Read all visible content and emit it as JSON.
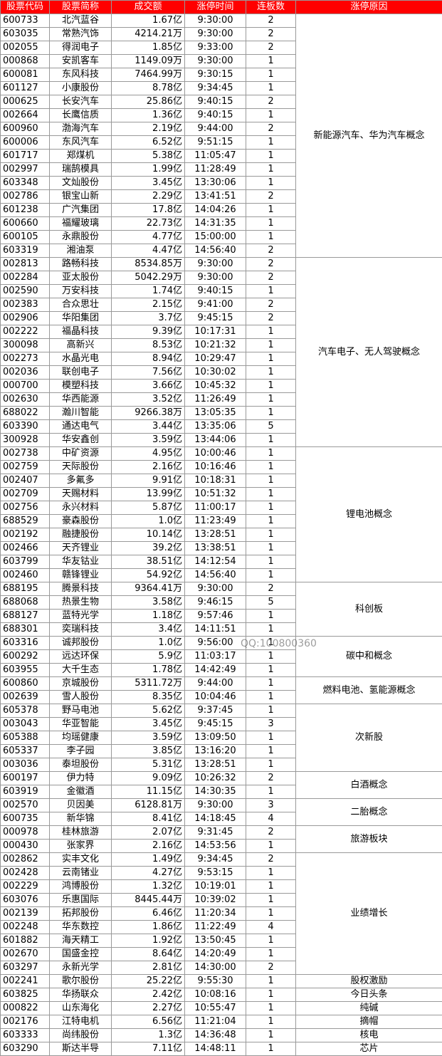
{
  "header": [
    "股票代码",
    "股票简称",
    "成交额",
    "涨停时间",
    "连板数",
    "涨停原因"
  ],
  "groups": [
    {
      "reason": "新能源汽车、华为汽车概念",
      "rows": [
        [
          "600733",
          "北汽蓝谷",
          "1.67亿",
          "9:30:00",
          "2"
        ],
        [
          "603035",
          "常熟汽饰",
          "4214.21万",
          "9:30:00",
          "2"
        ],
        [
          "002055",
          "得润电子",
          "1.85亿",
          "9:33:00",
          "2"
        ],
        [
          "000868",
          "安凯客车",
          "1149.09万",
          "9:30:00",
          "1"
        ],
        [
          "600081",
          "东风科技",
          "7464.99万",
          "9:30:15",
          "1"
        ],
        [
          "601127",
          "小康股份",
          "8.78亿",
          "9:34:45",
          "1"
        ],
        [
          "000625",
          "长安汽车",
          "25.86亿",
          "9:40:15",
          "2"
        ],
        [
          "002664",
          "长鹰信质",
          "1.36亿",
          "9:40:15",
          "1"
        ],
        [
          "600960",
          "渤海汽车",
          "2.19亿",
          "9:44:00",
          "2"
        ],
        [
          "600006",
          "东风汽车",
          "6.52亿",
          "9:51:15",
          "1"
        ],
        [
          "601717",
          "郑煤机",
          "5.38亿",
          "11:05:47",
          "1"
        ],
        [
          "002997",
          "瑞鹄模具",
          "1.99亿",
          "11:28:49",
          "1"
        ],
        [
          "603348",
          "文灿股份",
          "3.45亿",
          "13:30:06",
          "1"
        ],
        [
          "002786",
          "银宝山新",
          "2.29亿",
          "13:41:51",
          "2"
        ],
        [
          "601238",
          "广汽集团",
          "17.8亿",
          "14:04:26",
          "1"
        ],
        [
          "600660",
          "福耀玻璃",
          "22.73亿",
          "14:31:35",
          "1"
        ],
        [
          "600105",
          "永鼎股份",
          "4.77亿",
          "15:00:00",
          "1"
        ],
        [
          "603319",
          "湘油泵",
          "4.47亿",
          "14:56:40",
          "2"
        ]
      ]
    },
    {
      "reason": "汽车电子、无人驾驶概念",
      "rows": [
        [
          "002813",
          "路畅科技",
          "8534.85万",
          "9:30:00",
          "2"
        ],
        [
          "002284",
          "亚太股份",
          "5042.29万",
          "9:30:00",
          "2"
        ],
        [
          "002590",
          "万安科技",
          "1.74亿",
          "9:40:15",
          "1"
        ],
        [
          "002383",
          "合众思壮",
          "2.15亿",
          "9:41:00",
          "2"
        ],
        [
          "002906",
          "华阳集团",
          "3.7亿",
          "9:45:15",
          "2"
        ],
        [
          "002222",
          "福晶科技",
          "9.39亿",
          "10:17:31",
          "1"
        ],
        [
          "300098",
          "高新兴",
          "8.53亿",
          "10:21:32",
          "1"
        ],
        [
          "002273",
          "水晶光电",
          "8.94亿",
          "10:29:47",
          "1"
        ],
        [
          "002036",
          "联创电子",
          "7.56亿",
          "10:30:02",
          "1"
        ],
        [
          "000700",
          "模塑科技",
          "3.66亿",
          "10:45:32",
          "1"
        ],
        [
          "002630",
          "华西能源",
          "3.52亿",
          "11:26:49",
          "1"
        ],
        [
          "688022",
          "瀚川智能",
          "9266.38万",
          "13:05:35",
          "1"
        ],
        [
          "603390",
          "通达电气",
          "3.44亿",
          "13:35:06",
          "5"
        ],
        [
          "300928",
          "华安鑫创",
          "3.59亿",
          "13:44:06",
          "1"
        ]
      ]
    },
    {
      "reason": "锂电池概念",
      "rows": [
        [
          "002738",
          "中矿资源",
          "4.95亿",
          "10:00:46",
          "1"
        ],
        [
          "002759",
          "天际股份",
          "2.16亿",
          "10:16:46",
          "1"
        ],
        [
          "002407",
          "多氟多",
          "9.91亿",
          "10:18:31",
          "1"
        ],
        [
          "002709",
          "天赐材料",
          "13.99亿",
          "10:51:32",
          "1"
        ],
        [
          "002756",
          "永兴材料",
          "5.87亿",
          "11:00:17",
          "1"
        ],
        [
          "688529",
          "豪森股份",
          "1.0亿",
          "11:23:49",
          "1"
        ],
        [
          "002192",
          "融捷股份",
          "10.14亿",
          "13:28:51",
          "1"
        ],
        [
          "002466",
          "天齐锂业",
          "39.2亿",
          "13:38:51",
          "1"
        ],
        [
          "603799",
          "华友钴业",
          "38.51亿",
          "14:12:54",
          "1"
        ],
        [
          "002460",
          "赣锋锂业",
          "54.92亿",
          "14:56:40",
          "1"
        ]
      ]
    },
    {
      "reason": "科创板",
      "rows": [
        [
          "688195",
          "腾景科技",
          "9364.41万",
          "9:30:00",
          "2"
        ],
        [
          "688068",
          "热景生物",
          "3.58亿",
          "9:46:15",
          "5"
        ],
        [
          "688127",
          "蓝特光学",
          "1.18亿",
          "9:57:46",
          "1"
        ],
        [
          "688301",
          "奕瑞科技",
          "3.4亿",
          "14:11:51",
          "1"
        ]
      ]
    },
    {
      "reason": "碳中和概念",
      "rows": [
        [
          "603316",
          "诚邦股份",
          "1.0亿",
          "9:56:00",
          "1"
        ],
        [
          "600292",
          "远达环保",
          "5.9亿",
          "11:03:17",
          "1"
        ],
        [
          "603955",
          "大千生态",
          "1.78亿",
          "14:42:49",
          "1"
        ]
      ]
    },
    {
      "reason": "燃料电池、氢能源概念",
      "rows": [
        [
          "600860",
          "京城股份",
          "5311.72万",
          "9:44:00",
          "1"
        ],
        [
          "002639",
          "雪人股份",
          "8.35亿",
          "10:04:46",
          "1"
        ]
      ]
    },
    {
      "reason": "次新股",
      "rows": [
        [
          "605378",
          "野马电池",
          "5.62亿",
          "9:37:45",
          "1"
        ],
        [
          "003043",
          "华亚智能",
          "3.45亿",
          "9:45:15",
          "3"
        ],
        [
          "605388",
          "均瑶健康",
          "3.59亿",
          "13:09:50",
          "1"
        ],
        [
          "605337",
          "李子园",
          "3.85亿",
          "13:16:20",
          "1"
        ],
        [
          "003036",
          "泰坦股份",
          "5.31亿",
          "13:28:51",
          "1"
        ]
      ]
    },
    {
      "reason": "白酒概念",
      "rows": [
        [
          "600197",
          "伊力特",
          "9.09亿",
          "10:26:32",
          "2"
        ],
        [
          "603919",
          "金徽酒",
          "11.15亿",
          "14:30:35",
          "1"
        ]
      ]
    },
    {
      "reason": "二胎概念",
      "rows": [
        [
          "002570",
          "贝因美",
          "6128.81万",
          "9:30:00",
          "3"
        ],
        [
          "600735",
          "新华锦",
          "8.41亿",
          "14:18:45",
          "4"
        ]
      ]
    },
    {
      "reason": "旅游板块",
      "rows": [
        [
          "000978",
          "桂林旅游",
          "2.07亿",
          "9:31:45",
          "2"
        ],
        [
          "000430",
          "张家界",
          "2.16亿",
          "14:53:56",
          "1"
        ]
      ]
    },
    {
      "reason": "业绩增长",
      "rows": [
        [
          "002862",
          "实丰文化",
          "1.49亿",
          "9:34:45",
          "2"
        ],
        [
          "002428",
          "云南锗业",
          "4.27亿",
          "9:53:15",
          "1"
        ],
        [
          "002229",
          "鸿博股份",
          "1.32亿",
          "10:19:01",
          "1"
        ],
        [
          "603076",
          "乐惠国际",
          "8445.44万",
          "10:39:02",
          "1"
        ],
        [
          "002139",
          "拓邦股份",
          "6.46亿",
          "11:20:34",
          "1"
        ],
        [
          "002248",
          "华东数控",
          "1.86亿",
          "11:22:49",
          "4"
        ],
        [
          "601882",
          "海天精工",
          "1.92亿",
          "13:50:45",
          "1"
        ],
        [
          "002670",
          "国盛金控",
          "8.64亿",
          "14:20:49",
          "1"
        ],
        [
          "603297",
          "永新光学",
          "2.81亿",
          "14:30:00",
          "2"
        ]
      ]
    },
    {
      "reason": "股权激励",
      "rows": [
        [
          "002241",
          "歌尔股份",
          "25.22亿",
          "9:55:30",
          "1"
        ]
      ]
    },
    {
      "reason": "今日头条",
      "rows": [
        [
          "603825",
          "华扬联众",
          "2.42亿",
          "10:08:16",
          "1"
        ]
      ]
    },
    {
      "reason": "纯碱",
      "rows": [
        [
          "000822",
          "山东海化",
          "2.27亿",
          "10:55:47",
          "1"
        ]
      ]
    },
    {
      "reason": "摘帽",
      "rows": [
        [
          "002176",
          "江特电机",
          "6.56亿",
          "11:21:04",
          "1"
        ]
      ]
    },
    {
      "reason": "核电",
      "rows": [
        [
          "603333",
          "尚纬股份",
          "1.3亿",
          "14:36:48",
          "1"
        ]
      ]
    },
    {
      "reason": "芯片",
      "rows": [
        [
          "603290",
          "斯达半导",
          "7.11亿",
          "14:48:11",
          "1"
        ]
      ]
    }
  ],
  "watermark": "QQ:100800360"
}
